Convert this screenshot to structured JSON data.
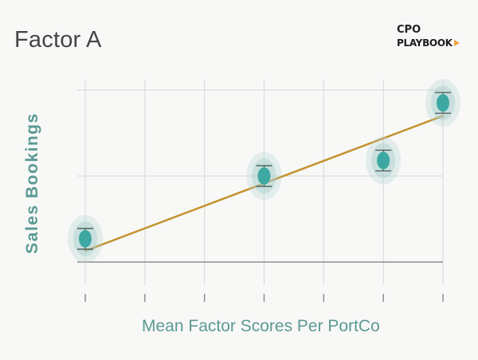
{
  "title": "Factor A",
  "logo": {
    "line1": "CPO",
    "line2": "PLAYBOOK"
  },
  "chart_data": {
    "type": "scatter",
    "title": "Factor A",
    "xlabel": "Mean Factor Scores Per PortCo",
    "ylabel": "Sales Bookings",
    "x_ticks": 7,
    "points": [
      {
        "x": 0,
        "y": 0.27
      },
      {
        "x": 3,
        "y": 1.0
      },
      {
        "x": 5,
        "y": 1.18
      },
      {
        "x": 6,
        "y": 1.85
      }
    ],
    "trendline": {
      "x": [
        0,
        6
      ],
      "y": [
        0.13,
        1.7
      ]
    },
    "xlim": [
      0,
      6
    ],
    "ylim": [
      0,
      2
    ],
    "grid": true,
    "colors": {
      "point": "#3da8a2",
      "halo": "#a9cfcc",
      "trend": "#c4922e",
      "grid": "#d5d9d8",
      "axis": "#8a908f"
    }
  }
}
